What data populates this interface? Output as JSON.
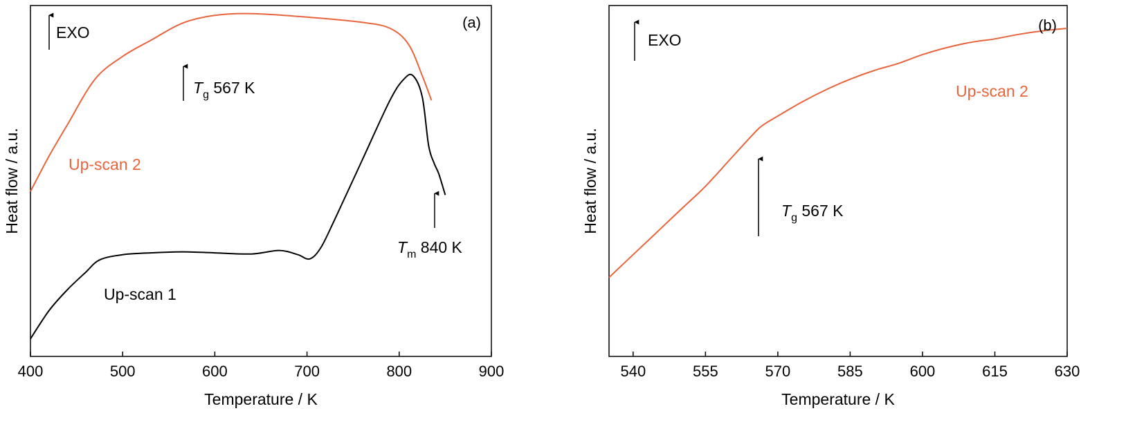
{
  "colors": {
    "scan1": "#000000",
    "scan2": "#e8643c"
  },
  "chart_data": [
    {
      "type": "line",
      "panel_label": "(a)",
      "xlabel": "Temperature / K",
      "ylabel": "Heat flow / a.u.",
      "xlim": [
        400,
        900
      ],
      "ylim": [
        0,
        1
      ],
      "xticks": [
        "400",
        "500",
        "600",
        "700",
        "800",
        "900"
      ],
      "exo_label": "EXO",
      "grid": false,
      "series": [
        {
          "name": "Up-scan 1",
          "x": [
            400,
            420,
            440,
            460,
            475,
            500,
            530,
            565,
            600,
            640,
            670,
            690,
            703,
            715,
            730,
            760,
            790,
            805,
            815,
            825,
            832,
            838,
            843,
            850
          ],
          "y": [
            0.05,
            0.13,
            0.19,
            0.24,
            0.275,
            0.29,
            0.295,
            0.298,
            0.295,
            0.292,
            0.302,
            0.29,
            0.278,
            0.31,
            0.39,
            0.56,
            0.73,
            0.79,
            0.8,
            0.74,
            0.6,
            0.55,
            0.52,
            0.46
          ]
        },
        {
          "name": "Up-scan 2",
          "x": [
            400,
            420,
            440,
            470,
            500,
            530,
            565,
            600,
            640,
            700,
            760,
            790,
            810,
            825,
            835
          ],
          "y": [
            0.47,
            0.57,
            0.66,
            0.79,
            0.855,
            0.9,
            0.95,
            0.972,
            0.977,
            0.967,
            0.952,
            0.935,
            0.89,
            0.8,
            0.73
          ]
        }
      ],
      "annotations": [
        {
          "symbol": "T",
          "sub": "g",
          "value": " 567 K",
          "x": 567
        },
        {
          "symbol": "T",
          "sub": "m",
          "value": " 840 K",
          "x": 840
        }
      ]
    },
    {
      "type": "line",
      "panel_label": "(b)",
      "xlabel": "Temperature / K",
      "ylabel": "Heat flow / a.u.",
      "xlim": [
        535,
        630
      ],
      "ylim": [
        0,
        1
      ],
      "xticks": [
        "540",
        "555",
        "570",
        "585",
        "600",
        "615",
        "630"
      ],
      "exo_label": "EXO",
      "grid": false,
      "series": [
        {
          "name": "Up-scan 2",
          "x": [
            535,
            540,
            545,
            550,
            555,
            560,
            565,
            567,
            570,
            575,
            580,
            585,
            590,
            595,
            600,
            605,
            610,
            615,
            620,
            625,
            630
          ],
          "y": [
            0.225,
            0.29,
            0.355,
            0.42,
            0.485,
            0.56,
            0.635,
            0.66,
            0.685,
            0.725,
            0.76,
            0.79,
            0.815,
            0.835,
            0.86,
            0.88,
            0.895,
            0.905,
            0.918,
            0.928,
            0.935
          ]
        }
      ],
      "annotations": [
        {
          "symbol": "T",
          "sub": "g",
          "value": " 567 K",
          "x": 566
        }
      ]
    }
  ]
}
